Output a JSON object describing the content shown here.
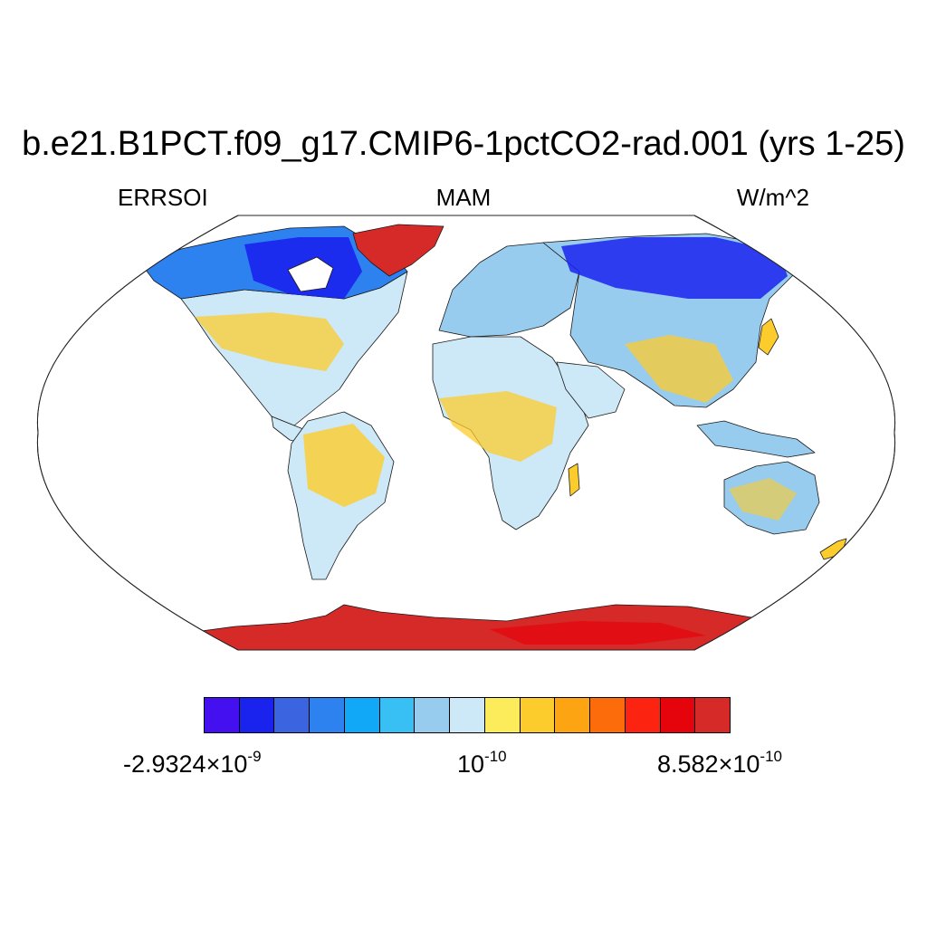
{
  "title": "b.e21.B1PCT.f09_g17.CMIP6-1pctCO2-rad.001 (yrs 1-25)",
  "left_label": "ERRSOI",
  "center_label": "MAM",
  "right_label": "W/m^2",
  "colorbar": {
    "colors": [
      "#4410f0",
      "#1a22ee",
      "#3a64e0",
      "#2e82f0",
      "#12a8f8",
      "#38c0f4",
      "#98ccee",
      "#cde8f6",
      "#fcec5c",
      "#fccc2c",
      "#fca412",
      "#fc6c0a",
      "#fc2410",
      "#e6040c",
      "#d62a28"
    ],
    "label_min": {
      "mantissa": "-2.9324",
      "times": "×",
      "base": "10",
      "exponent": "-9"
    },
    "label_mid": {
      "base": "10",
      "exponent": "-10"
    },
    "label_max": {
      "mantissa": "8.582",
      "times": "×",
      "base": "10",
      "exponent": "-10"
    }
  },
  "map": {
    "projection": "Robinson",
    "field": "ERRSOI",
    "ocean_color": "#ffffff",
    "coastline_color": "#000000"
  }
}
